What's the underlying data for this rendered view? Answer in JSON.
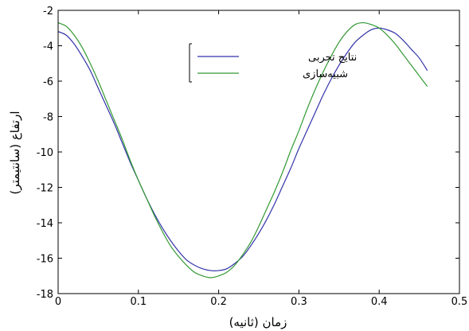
{
  "chart_data": {
    "type": "line",
    "xlabel": "زمان (ثانیه)",
    "ylabel": "ارتفاع (سانتیمتر)",
    "xlim": [
      0,
      0.5
    ],
    "ylim": [
      -18,
      -2
    ],
    "xticks": [
      "0",
      "0.1",
      "0.2",
      "0.3",
      "0.4",
      "0.5"
    ],
    "yticks": [
      "-2",
      "-4",
      "-6",
      "-8",
      "-10",
      "-12",
      "-14",
      "-16",
      "-18"
    ],
    "legend_position": "top-center",
    "series": [
      {
        "name": "نتایج تجربی",
        "color": "#3333aa",
        "points": [
          [
            0.0,
            -3.2
          ],
          [
            0.01,
            -3.4
          ],
          [
            0.02,
            -3.9
          ],
          [
            0.03,
            -4.6
          ],
          [
            0.04,
            -5.4
          ],
          [
            0.05,
            -6.4
          ],
          [
            0.06,
            -7.4
          ],
          [
            0.07,
            -8.4
          ],
          [
            0.08,
            -9.5
          ],
          [
            0.09,
            -10.6
          ],
          [
            0.1,
            -11.6
          ],
          [
            0.11,
            -12.6
          ],
          [
            0.12,
            -13.5
          ],
          [
            0.13,
            -14.3
          ],
          [
            0.14,
            -15.0
          ],
          [
            0.15,
            -15.6
          ],
          [
            0.16,
            -16.1
          ],
          [
            0.17,
            -16.4
          ],
          [
            0.18,
            -16.6
          ],
          [
            0.19,
            -16.7
          ],
          [
            0.2,
            -16.7
          ],
          [
            0.21,
            -16.6
          ],
          [
            0.22,
            -16.3
          ],
          [
            0.23,
            -15.9
          ],
          [
            0.24,
            -15.3
          ],
          [
            0.25,
            -14.6
          ],
          [
            0.26,
            -13.8
          ],
          [
            0.27,
            -12.9
          ],
          [
            0.28,
            -11.9
          ],
          [
            0.29,
            -10.9
          ],
          [
            0.3,
            -9.8
          ],
          [
            0.31,
            -8.8
          ],
          [
            0.32,
            -7.8
          ],
          [
            0.33,
            -6.8
          ],
          [
            0.34,
            -5.9
          ],
          [
            0.35,
            -5.1
          ],
          [
            0.36,
            -4.4
          ],
          [
            0.37,
            -3.8
          ],
          [
            0.38,
            -3.4
          ],
          [
            0.39,
            -3.1
          ],
          [
            0.4,
            -3.0
          ],
          [
            0.41,
            -3.1
          ],
          [
            0.42,
            -3.3
          ],
          [
            0.43,
            -3.7
          ],
          [
            0.44,
            -4.2
          ],
          [
            0.45,
            -4.7
          ],
          [
            0.46,
            -5.4
          ]
        ]
      },
      {
        "name": "شبیه‌سازی",
        "color": "#339933",
        "points": [
          [
            0.0,
            -2.7
          ],
          [
            0.01,
            -2.9
          ],
          [
            0.02,
            -3.4
          ],
          [
            0.03,
            -4.1
          ],
          [
            0.04,
            -5.0
          ],
          [
            0.05,
            -6.0
          ],
          [
            0.06,
            -7.1
          ],
          [
            0.07,
            -8.2
          ],
          [
            0.08,
            -9.3
          ],
          [
            0.09,
            -10.5
          ],
          [
            0.1,
            -11.6
          ],
          [
            0.11,
            -12.6
          ],
          [
            0.12,
            -13.6
          ],
          [
            0.13,
            -14.5
          ],
          [
            0.14,
            -15.3
          ],
          [
            0.15,
            -15.9
          ],
          [
            0.16,
            -16.4
          ],
          [
            0.17,
            -16.8
          ],
          [
            0.18,
            -17.0
          ],
          [
            0.19,
            -17.1
          ],
          [
            0.2,
            -17.0
          ],
          [
            0.21,
            -16.8
          ],
          [
            0.22,
            -16.4
          ],
          [
            0.23,
            -15.8
          ],
          [
            0.24,
            -15.1
          ],
          [
            0.25,
            -14.2
          ],
          [
            0.26,
            -13.2
          ],
          [
            0.27,
            -12.2
          ],
          [
            0.28,
            -11.1
          ],
          [
            0.29,
            -9.9
          ],
          [
            0.3,
            -8.8
          ],
          [
            0.31,
            -7.6
          ],
          [
            0.32,
            -6.5
          ],
          [
            0.33,
            -5.5
          ],
          [
            0.34,
            -4.6
          ],
          [
            0.35,
            -3.8
          ],
          [
            0.36,
            -3.2
          ],
          [
            0.37,
            -2.8
          ],
          [
            0.38,
            -2.7
          ],
          [
            0.39,
            -2.8
          ],
          [
            0.4,
            -3.0
          ],
          [
            0.41,
            -3.4
          ],
          [
            0.42,
            -3.9
          ],
          [
            0.43,
            -4.5
          ],
          [
            0.44,
            -5.1
          ],
          [
            0.45,
            -5.7
          ],
          [
            0.46,
            -6.3
          ]
        ]
      }
    ]
  }
}
